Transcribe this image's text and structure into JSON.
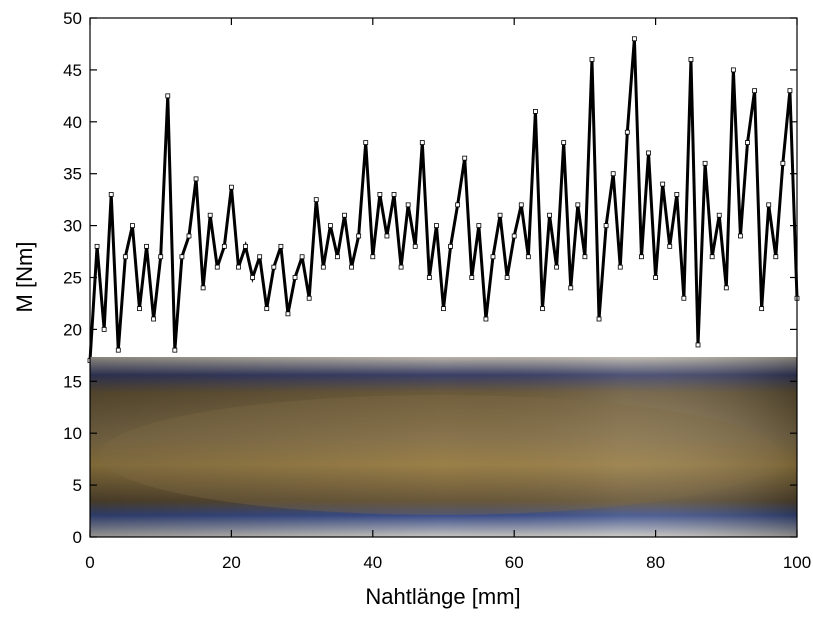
{
  "chart_data": {
    "type": "line",
    "xlabel": "Nahtlänge [mm]",
    "ylabel": "M [Nm]",
    "xlim": [
      0,
      100
    ],
    "xticks": [
      0,
      20,
      40,
      60,
      80,
      100
    ],
    "ylim": [
      0,
      50
    ],
    "yticks": [
      0,
      5,
      10,
      15,
      20,
      25,
      30,
      35,
      40,
      45,
      50
    ],
    "x": [
      0,
      1,
      2,
      3,
      4,
      5,
      6,
      7,
      8,
      9,
      10,
      11,
      12,
      13,
      14,
      15,
      16,
      17,
      18,
      19,
      20,
      21,
      22,
      23,
      24,
      25,
      26,
      27,
      28,
      29,
      30,
      31,
      32,
      33,
      34,
      35,
      36,
      37,
      38,
      39,
      40,
      41,
      42,
      43,
      44,
      45,
      46,
      47,
      48,
      49,
      50,
      51,
      52,
      53,
      54,
      55,
      56,
      57,
      58,
      59,
      60,
      61,
      62,
      63,
      64,
      65,
      66,
      67,
      68,
      69,
      70,
      71,
      72,
      73,
      74,
      75,
      76,
      77,
      78,
      79,
      80,
      81,
      82,
      83,
      84,
      85,
      86,
      87,
      88,
      89,
      90,
      91,
      92,
      93,
      94,
      95,
      96,
      97,
      98,
      99,
      100
    ],
    "series": [
      {
        "color": "#000000",
        "values": [
          17,
          28,
          20,
          33,
          18,
          27,
          30,
          22,
          28,
          21,
          27,
          42.5,
          18,
          27,
          29,
          34.5,
          24,
          31,
          26,
          28,
          33.7,
          26,
          28,
          25,
          27,
          22,
          26,
          28,
          21.5,
          25,
          27,
          23,
          32.5,
          26,
          30,
          27,
          31,
          26,
          29,
          38,
          27,
          33,
          29,
          33,
          26,
          32,
          28,
          38,
          25,
          30,
          22,
          28,
          32,
          36.5,
          25,
          30,
          21,
          27,
          31,
          25,
          29,
          32,
          27,
          41,
          22,
          31,
          26,
          38,
          24,
          32,
          27,
          46,
          21,
          30,
          35,
          26,
          39,
          48,
          27,
          37,
          25,
          34,
          28,
          33,
          23,
          46,
          18.5,
          36,
          27,
          31,
          24,
          45,
          29,
          38,
          43,
          22,
          32,
          27,
          36,
          43,
          23
        ]
      }
    ]
  }
}
